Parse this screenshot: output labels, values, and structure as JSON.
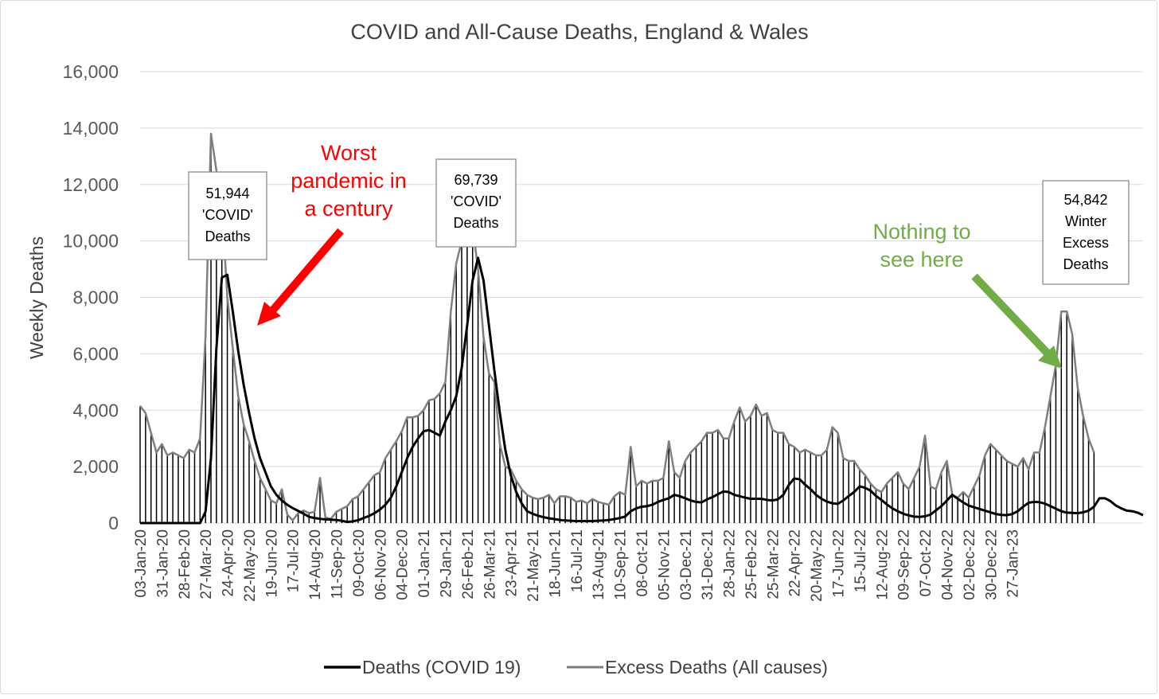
{
  "chart_data": {
    "type": "line",
    "title": "COVID and All-Cause Deaths, England & Wales",
    "ylabel": "Weekly Deaths",
    "xlabel": "",
    "ylim": [
      0,
      16000
    ],
    "yticks": [
      "0",
      "2,000",
      "4,000",
      "6,000",
      "8,000",
      "10,000",
      "12,000",
      "14,000",
      "16,000"
    ],
    "grid": "horizontal",
    "legend_position": "bottom",
    "xtick_labels": [
      "03-Jan-20",
      "31-Jan-20",
      "28-Feb-20",
      "27-Mar-20",
      "24-Apr-20",
      "22-May-20",
      "19-Jun-20",
      "17-Jul-20",
      "14-Aug-20",
      "11-Sep-20",
      "09-Oct-20",
      "06-Nov-20",
      "04-Dec-20",
      "01-Jan-21",
      "29-Jan-21",
      "26-Feb-21",
      "26-Mar-21",
      "23-Apr-21",
      "21-May-21",
      "18-Jun-21",
      "16-Jul-21",
      "13-Aug-21",
      "10-Sep-21",
      "08-Oct-21",
      "05-Nov-21",
      "03-Dec-21",
      "31-Dec-21",
      "28-Jan-22",
      "25-Feb-22",
      "25-Mar-22",
      "22-Apr-22",
      "20-May-22",
      "17-Jun-22",
      "15-Jul-22",
      "12-Aug-22",
      "09-Sep-22",
      "07-Oct-22",
      "04-Nov-22",
      "02-Dec-22",
      "30-Dec-22",
      "27-Jan-23"
    ],
    "series": [
      {
        "name": "Deaths (COVID 19)",
        "color": "#000000",
        "values": [
          0,
          0,
          0,
          0,
          0,
          0,
          0,
          0,
          0,
          0,
          0,
          0,
          400,
          2300,
          6200,
          8700,
          8800,
          7500,
          6100,
          4900,
          3900,
          3000,
          2300,
          1800,
          1300,
          1000,
          800,
          650,
          530,
          430,
          330,
          220,
          180,
          150,
          130,
          120,
          110,
          80,
          40,
          60,
          100,
          180,
          250,
          350,
          480,
          650,
          900,
          1300,
          1800,
          2300,
          2700,
          3000,
          3250,
          3300,
          3200,
          3100,
          3600,
          4000,
          4500,
          5500,
          7000,
          8600,
          9400,
          8600,
          7000,
          5400,
          3900,
          2600,
          1700,
          1100,
          700,
          420,
          330,
          260,
          210,
          170,
          140,
          110,
          90,
          80,
          70,
          70,
          70,
          70,
          80,
          90,
          110,
          140,
          180,
          230,
          420,
          520,
          580,
          600,
          650,
          750,
          820,
          880,
          1000,
          950,
          880,
          800,
          750,
          730,
          840,
          920,
          1020,
          1120,
          1100,
          1000,
          950,
          900,
          860,
          860,
          860,
          820,
          800,
          840,
          1000,
          1350,
          1580,
          1550,
          1360,
          1200,
          1000,
          860,
          760,
          700,
          680,
          800,
          960,
          1100,
          1300,
          1250,
          1150,
          960,
          820,
          660,
          520,
          420,
          330,
          270,
          230,
          220,
          240,
          300,
          450,
          600,
          800,
          1000,
          860,
          730,
          620,
          560,
          500,
          440,
          380,
          320,
          290,
          280,
          320,
          420,
          580,
          720,
          750,
          740,
          690,
          600,
          510,
          420,
          370,
          360,
          350,
          380,
          440,
          580,
          880,
          880,
          780,
          620,
          520,
          440,
          420,
          370,
          280
        ]
      },
      {
        "name": "Excess Deaths (All causes)",
        "color": "#7f7f7f",
        "values": [
          4150,
          3900,
          3200,
          2500,
          2800,
          2400,
          2500,
          2400,
          2300,
          2600,
          2500,
          3000,
          6600,
          13800,
          12500,
          11300,
          8000,
          6200,
          4500,
          3500,
          2900,
          2200,
          1600,
          1200,
          800,
          700,
          1200,
          300,
          100,
          350,
          450,
          350,
          400,
          1600,
          200,
          150,
          400,
          500,
          600,
          850,
          950,
          1200,
          1450,
          1700,
          1800,
          2300,
          2600,
          2900,
          3250,
          3750,
          3750,
          3800,
          4000,
          4350,
          4400,
          4600,
          5000,
          7500,
          9200,
          10000,
          10800,
          10500,
          9000,
          6600,
          5300,
          5000,
          2800,
          2000,
          1900,
          1500,
          1200,
          1000,
          900,
          850,
          900,
          1000,
          700,
          950,
          950,
          900,
          750,
          800,
          700,
          850,
          750,
          700,
          650,
          950,
          1100,
          1000,
          2700,
          1300,
          1500,
          1400,
          1500,
          1500,
          1600,
          2900,
          1800,
          1600,
          2200,
          2500,
          2700,
          2900,
          3200,
          3200,
          3300,
          3000,
          3000,
          3600,
          4100,
          3600,
          3800,
          4200,
          3800,
          3900,
          3300,
          3200,
          3200,
          2800,
          2700,
          2500,
          2600,
          2500,
          2400,
          2400,
          2600,
          3400,
          3200,
          2300,
          2200,
          2200,
          1900,
          1700,
          1400,
          1200,
          1100,
          1400,
          1600,
          1800,
          1400,
          1200,
          1600,
          2000,
          3100,
          1300,
          1200,
          1800,
          2200,
          1000,
          900,
          1100,
          900,
          1300,
          1700,
          2400,
          2800,
          2600,
          2400,
          2200,
          2100,
          2000,
          2300,
          1900,
          2500,
          2500,
          3400,
          4500,
          5600,
          7500,
          7500,
          6700,
          4800,
          3800,
          3000,
          2500
        ]
      }
    ]
  },
  "callouts": {
    "wave1": [
      "51,944",
      "'COVID'",
      "Deaths"
    ],
    "wave2": [
      "69,739",
      "'COVID'",
      "Deaths"
    ],
    "winter": [
      "54,842",
      "Winter",
      "Excess",
      "Deaths"
    ]
  },
  "notes": {
    "red": [
      "Worst",
      "pandemic in",
      "a century"
    ],
    "green": [
      "Nothing to",
      "see here"
    ]
  },
  "colors": {
    "red_arrow": "#ff0000",
    "green_arrow": "#70ad47",
    "hatch": "#000000"
  }
}
